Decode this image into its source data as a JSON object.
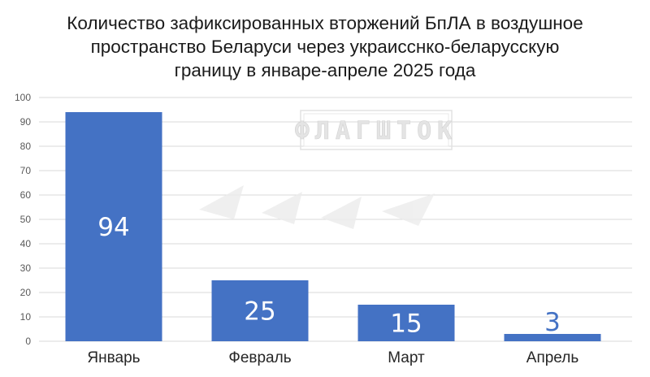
{
  "chart_data": {
    "type": "bar",
    "title_lines": [
      "Количество зафиксированных вторжений БпЛА в воздушное",
      "пространство Беларуси через украисcнко-беларусскую",
      "границу в январе-апреле 2025 года"
    ],
    "categories": [
      "Январь",
      "Февраль",
      "Март",
      "Апрель"
    ],
    "values": [
      94,
      25,
      15,
      3
    ],
    "data_labels": [
      "94",
      "25",
      "15",
      "3"
    ],
    "ylim": [
      0,
      100
    ],
    "yticks": [
      0,
      10,
      20,
      30,
      40,
      50,
      60,
      70,
      80,
      90,
      100
    ],
    "grid": true,
    "xlabel": "",
    "ylabel": ""
  },
  "watermark": {
    "text": "ФЛАГШТОК"
  },
  "colors": {
    "bar": "#4472c4",
    "label_inside": "#ffffff",
    "label_outside": "#4472c4",
    "grid": "#d9d9d9"
  }
}
